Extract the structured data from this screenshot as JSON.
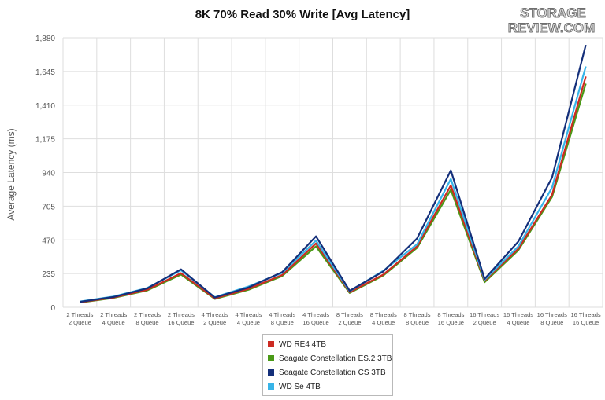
{
  "chart_data": {
    "type": "line",
    "title": "8K 70% Read 30% Write [Avg Latency]",
    "xlabel": "",
    "ylabel": "Average Latency (ms)",
    "ylim": [
      0,
      1880
    ],
    "yticks": [
      0,
      235,
      470,
      705,
      940,
      1175,
      1410,
      1645,
      1880
    ],
    "ytick_labels": [
      "0",
      "235",
      "470",
      "705",
      "940",
      "1,175",
      "1,410",
      "1,645",
      "1,880"
    ],
    "grid": true,
    "legend_position": "bottom",
    "categories": [
      [
        "2 Threads",
        "2 Queue"
      ],
      [
        "2 Threads",
        "4 Queue"
      ],
      [
        "2 Threads",
        "8 Queue"
      ],
      [
        "2 Threads",
        "16 Queue"
      ],
      [
        "4 Threads",
        "2 Queue"
      ],
      [
        "4 Threads",
        "4 Queue"
      ],
      [
        "4 Threads",
        "8 Queue"
      ],
      [
        "4 Threads",
        "16 Queue"
      ],
      [
        "8 Threads",
        "2 Queue"
      ],
      [
        "8 Threads",
        "4 Queue"
      ],
      [
        "8 Threads",
        "8 Queue"
      ],
      [
        "8 Threads",
        "16 Queue"
      ],
      [
        "16 Threads",
        "2 Queue"
      ],
      [
        "16 Threads",
        "4 Queue"
      ],
      [
        "16 Threads",
        "8 Queue"
      ],
      [
        "16 Threads",
        "16 Queue"
      ]
    ],
    "series": [
      {
        "name": "WD RE4 4TB",
        "color": "#cc2a22",
        "values": [
          35,
          68,
          122,
          238,
          62,
          128,
          225,
          445,
          105,
          228,
          425,
          850,
          185,
          408,
          785,
          1610
        ]
      },
      {
        "name": "Seagate Constellation ES.2 3TB",
        "color": "#4a9a17",
        "values": [
          33,
          65,
          118,
          228,
          58,
          122,
          218,
          425,
          100,
          222,
          415,
          820,
          175,
          398,
          770,
          1560
        ]
      },
      {
        "name": "Seagate Constellation CS 3TB",
        "color": "#142f7a",
        "values": [
          38,
          72,
          132,
          265,
          68,
          138,
          245,
          495,
          115,
          250,
          480,
          955,
          198,
          458,
          905,
          1830
        ]
      },
      {
        "name": "WD Se 4TB",
        "color": "#37b4e8",
        "values": [
          40,
          75,
          135,
          258,
          70,
          145,
          240,
          465,
          112,
          255,
          440,
          895,
          192,
          425,
          835,
          1680
        ]
      }
    ]
  },
  "logo": {
    "line1": "STORAGE",
    "line2": "REVIEW.COM"
  }
}
